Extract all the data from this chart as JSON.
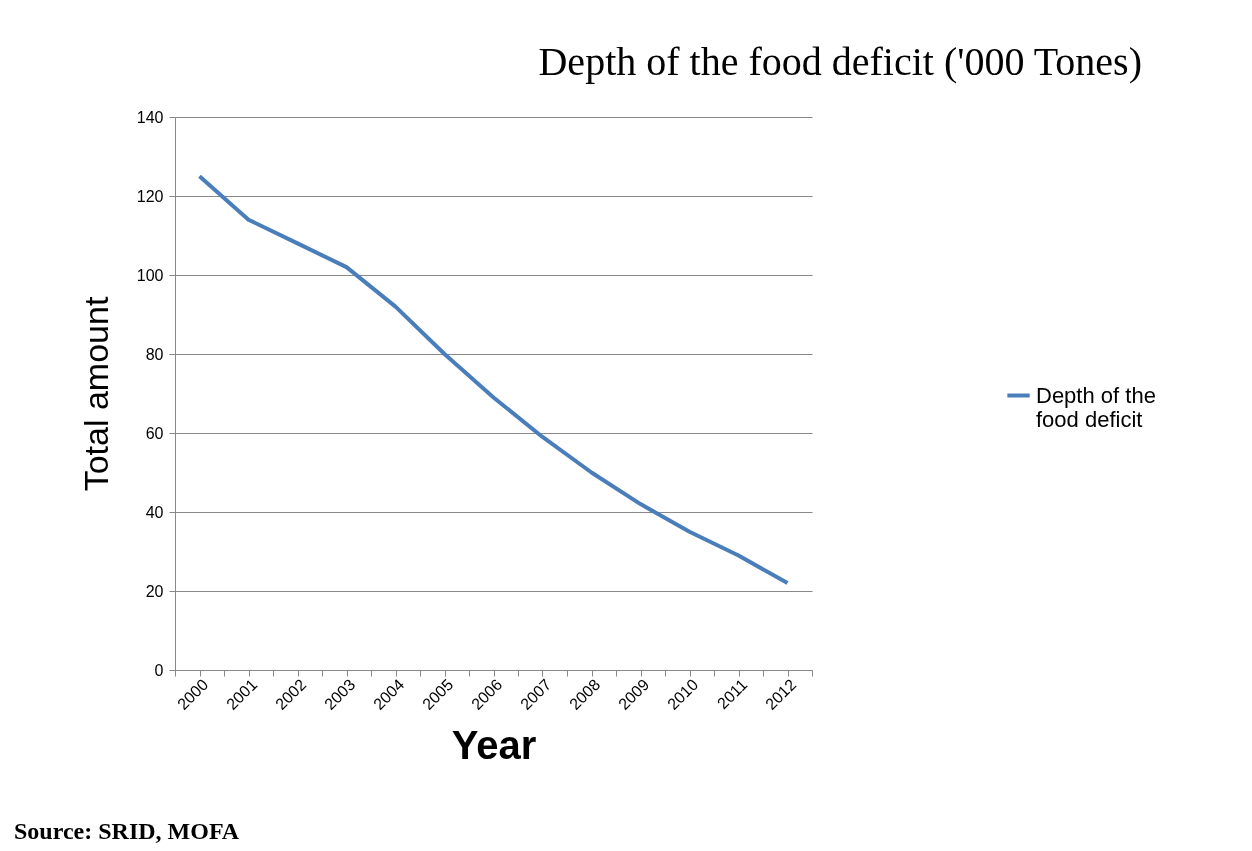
{
  "chart_data": {
    "type": "line",
    "title": "Depth of the food deficit ('000 Tones)",
    "xlabel": "Year",
    "ylabel": "Total amount",
    "categories": [
      "2000",
      "2001",
      "2002",
      "2003",
      "2004",
      "2005",
      "2006",
      "2007",
      "2008",
      "2009",
      "2010",
      "2011",
      "2012"
    ],
    "series": [
      {
        "name": "Depth of the food deficit",
        "color": "#4a7ebb",
        "values": [
          125,
          114,
          108,
          102,
          92,
          80,
          69,
          59,
          50,
          42,
          35,
          29,
          22
        ]
      }
    ],
    "ylim": [
      0,
      140
    ],
    "yticks": [
      0,
      20,
      40,
      60,
      80,
      100,
      120,
      140
    ],
    "grid": "y",
    "legend": "right",
    "marker": "none",
    "line_style": "solid",
    "annotations": [
      "Source: SRID, MOFA"
    ]
  }
}
